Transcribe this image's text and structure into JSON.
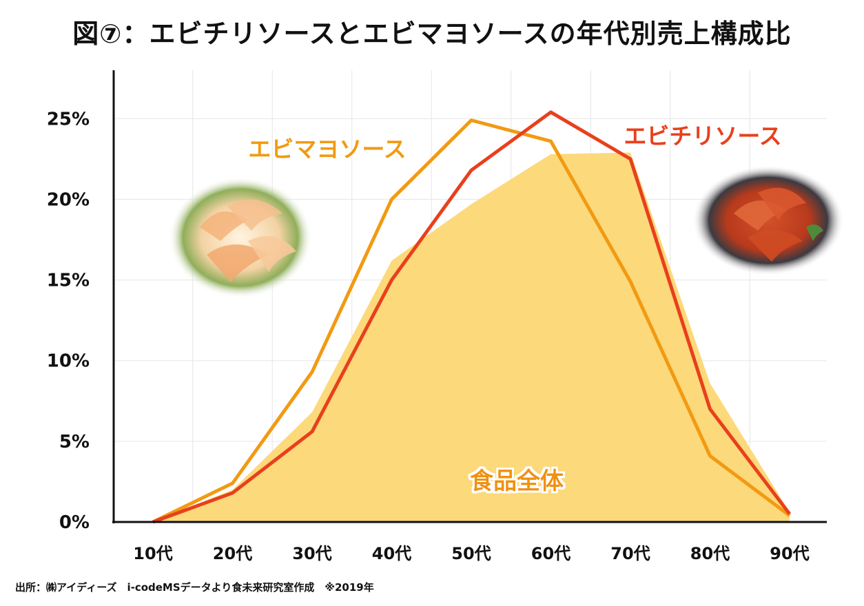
{
  "title": "図⑦：エビチリソースとエビマヨソースの年代別売上構成比",
  "source": "出所：㈱アイディーズ　i-codeMSデータより食未来研究室作成　※2019年",
  "colors": {
    "ebichili": "#e8401c",
    "ebimayo": "#f29a12",
    "food_total_fill": "#fcd97a",
    "axis": "#111111",
    "grid": "#e6e6e6",
    "area_label": "#f0920f"
  },
  "icons": {
    "left_photo": "shrimp-mayo-photo",
    "right_photo": "shrimp-chili-photo"
  },
  "chart_data": {
    "type": "line",
    "title": "図⑦：エビチリソースとエビマヨソースの年代別売上構成比",
    "xlabel": "",
    "ylabel": "",
    "categories": [
      "10代",
      "20代",
      "30代",
      "40代",
      "50代",
      "60代",
      "70代",
      "80代",
      "90代"
    ],
    "ylim": [
      0,
      28
    ],
    "yticks": [
      0,
      5,
      10,
      15,
      20,
      25
    ],
    "ytick_labels": [
      "0%",
      "5%",
      "10%",
      "15%",
      "20%",
      "25%"
    ],
    "grid": true,
    "series": [
      {
        "name": "エビチリソース",
        "kind": "line",
        "color": "#e8401c",
        "values": [
          0.0,
          1.8,
          5.6,
          15.0,
          21.8,
          25.4,
          22.5,
          7.0,
          0.5
        ]
      },
      {
        "name": "エビマヨソース",
        "kind": "line",
        "color": "#f29a12",
        "values": [
          0.0,
          2.4,
          9.3,
          20.0,
          24.9,
          23.6,
          14.9,
          4.1,
          0.4
        ]
      },
      {
        "name": "食品全体",
        "kind": "area",
        "color": "#fcd97a",
        "values": [
          0.0,
          2.0,
          6.8,
          16.2,
          19.7,
          22.8,
          22.9,
          8.6,
          0.6
        ]
      }
    ]
  }
}
